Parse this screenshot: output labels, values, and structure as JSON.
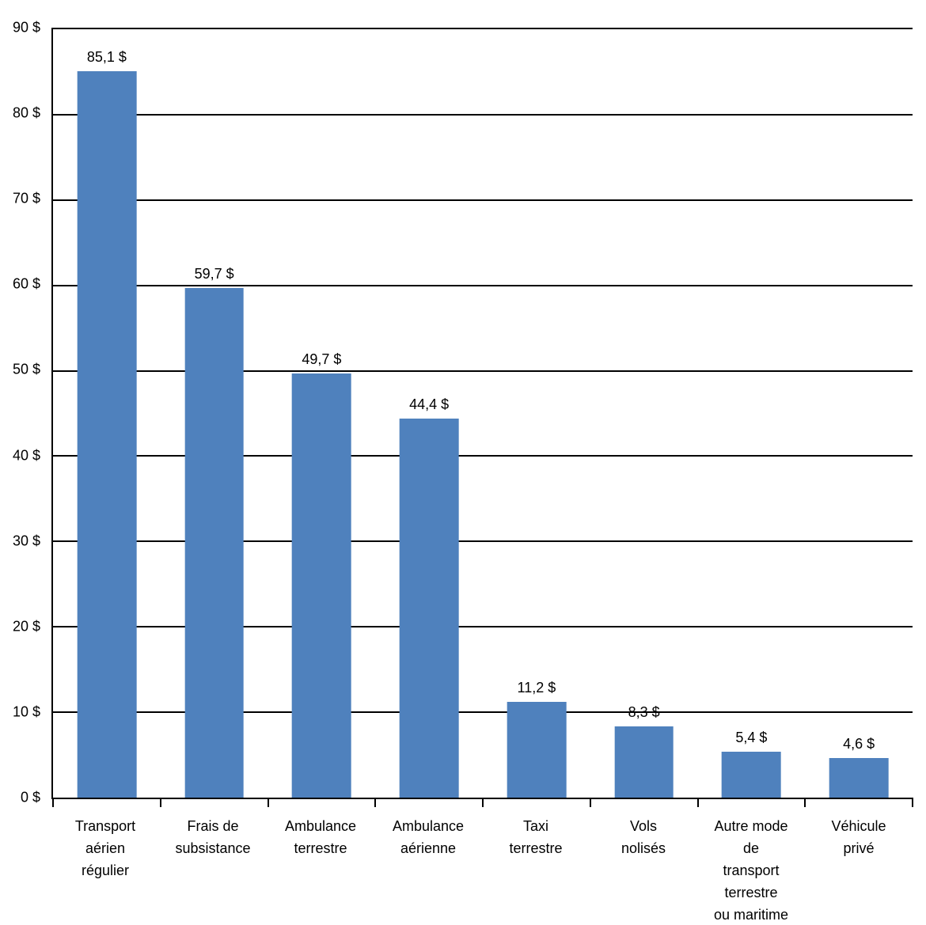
{
  "chart_data": {
    "type": "bar",
    "title": "",
    "xlabel": "",
    "ylabel": "",
    "grid": true,
    "legend": false,
    "ylim": [
      0,
      90
    ],
    "y_step": 10,
    "bar_color": "#4f81bd",
    "categories": [
      "Transport aérien régulier",
      "Frais de subsistance",
      "Ambulance terrestre",
      "Ambulance aérienne",
      "Taxi terrestre",
      "Vols nolisés",
      "Autre mode de transport terrestre ou maritime",
      "Véhicule privé"
    ],
    "category_label_lines": [
      [
        "Transport",
        "aérien",
        "régulier"
      ],
      [
        "Frais de",
        "subsistance"
      ],
      [
        "Ambulance",
        "terrestre"
      ],
      [
        "Ambulance",
        "aérienne"
      ],
      [
        "Taxi",
        "terrestre"
      ],
      [
        "Vols",
        "nolisés"
      ],
      [
        "Autre mode",
        "de",
        "transport",
        "terrestre",
        "ou maritime"
      ],
      [
        "Véhicule",
        "privé"
      ]
    ],
    "values": [
      85.1,
      59.7,
      49.7,
      44.4,
      11.2,
      8.3,
      5.4,
      4.6
    ],
    "value_labels": [
      "85,1 $",
      "59,7 $",
      "49,7 $",
      "44,4 $",
      "11,2 $",
      "8,3 $",
      "5,4 $",
      "4,6 $"
    ],
    "y_ticks": [
      "90 $",
      "80 $",
      "70 $",
      "60 $",
      "50 $",
      "40 $",
      "30 $",
      "20 $",
      "10 $",
      "0 $"
    ]
  }
}
